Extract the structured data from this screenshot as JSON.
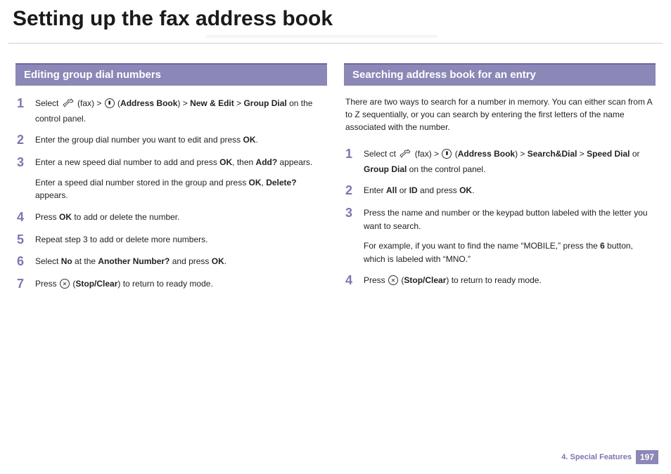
{
  "page": {
    "title": "Setting up the fax address book",
    "chapter_label": "4.  Special Features",
    "page_number": "197"
  },
  "left": {
    "header": "Editing group dial numbers",
    "steps": [
      {
        "num": "1",
        "parts": [
          "Select ",
          {
            "icon": "fax"
          },
          " (fax) > ",
          {
            "icon": "book"
          },
          " (",
          {
            "b": "Address Book"
          },
          ") > ",
          {
            "b": "New & Edit"
          },
          " > ",
          {
            "b": "Group Dial"
          },
          " on the control panel."
        ]
      },
      {
        "num": "2",
        "parts": [
          "Enter the group dial number you want to edit and press ",
          {
            "b": "OK"
          },
          "."
        ]
      },
      {
        "num": "3",
        "paras": [
          [
            "Enter a new speed dial number to add and press ",
            {
              "b": "OK"
            },
            ", then ",
            {
              "b": "Add?"
            },
            " appears."
          ],
          [
            "Enter a speed dial number stored in the group and press ",
            {
              "b": "OK"
            },
            ", ",
            {
              "b": "Delete?"
            },
            " appears."
          ]
        ]
      },
      {
        "num": "4",
        "parts": [
          "Press ",
          {
            "b": "OK"
          },
          " to add or delete the number."
        ]
      },
      {
        "num": "5",
        "parts": [
          "Repeat step 3 to add or delete more numbers."
        ]
      },
      {
        "num": "6",
        "parts": [
          "Select ",
          {
            "b": "No"
          },
          " at the ",
          {
            "b": "Another Number?"
          },
          " and press ",
          {
            "b": "OK"
          },
          "."
        ]
      },
      {
        "num": "7",
        "parts": [
          "Press ",
          {
            "icon": "stop"
          },
          "  (",
          {
            "b": "Stop/Clear"
          },
          ") to return to ready mode."
        ]
      }
    ]
  },
  "right": {
    "header": "Searching address book for an entry",
    "intro": "There are two ways to search for a number in memory. You can either scan from A to Z sequentially, or you can search by entering the first letters of the name associated with the number.",
    "steps": [
      {
        "num": "1",
        "parts": [
          "Select ct ",
          {
            "icon": "fax"
          },
          " (fax) > ",
          {
            "icon": "book"
          },
          " (",
          {
            "b": "Address Book"
          },
          ") > ",
          {
            "b": "Search&Dial"
          },
          " > ",
          {
            "b": "Speed Dial"
          },
          " or ",
          {
            "b": "Group Dial"
          },
          " on the control panel."
        ]
      },
      {
        "num": "2",
        "parts": [
          "Enter ",
          {
            "b": "All"
          },
          " or ",
          {
            "b": "ID"
          },
          " and press ",
          {
            "b": "OK"
          },
          "."
        ]
      },
      {
        "num": "3",
        "paras": [
          [
            "Press the name and number or the keypad button labeled with the letter you want to search."
          ],
          [
            "For example, if you want to find the name “MOBILE,” press the ",
            {
              "b": "6"
            },
            " button, which is labeled with “MNO.”"
          ]
        ]
      },
      {
        "num": "4",
        "parts": [
          "Press ",
          {
            "icon": "stop"
          },
          "  (",
          {
            "b": "Stop/Clear"
          },
          ") to return to ready mode."
        ]
      }
    ]
  },
  "colors": {
    "accent": "#8b87b7",
    "accent_dark": "#6c679f",
    "step_num": "#7a77b0",
    "text": "#222222"
  }
}
